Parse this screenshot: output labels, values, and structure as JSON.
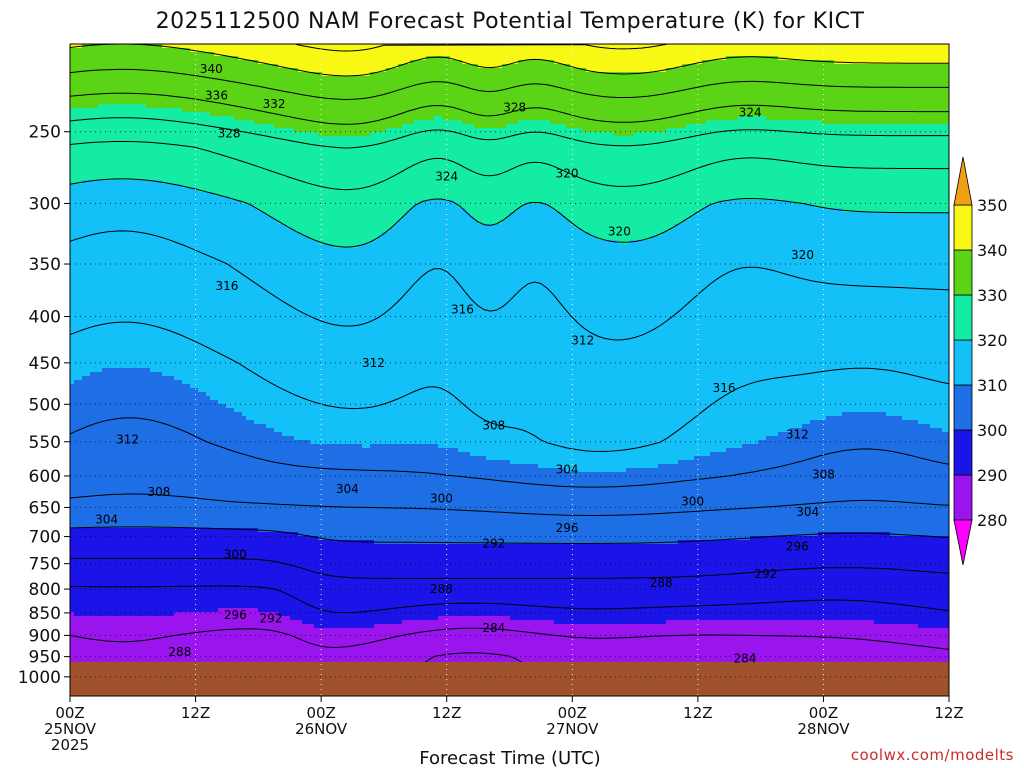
{
  "chart_data": {
    "type": "heatmap",
    "title": "2025112500 NAM Forecast Potential Temperature (K) for KICT",
    "xlabel": "Forecast Time (UTC)",
    "ylabel": "",
    "source_label": "coolwx.com/modelts",
    "x_range_hours": [
      0,
      84
    ],
    "x_ticks": [
      {
        "hour": 0,
        "lines": [
          "00Z",
          "25NOV",
          "2025"
        ]
      },
      {
        "hour": 12,
        "lines": [
          "12Z"
        ]
      },
      {
        "hour": 24,
        "lines": [
          "00Z",
          "26NOV"
        ]
      },
      {
        "hour": 36,
        "lines": [
          "12Z"
        ]
      },
      {
        "hour": 48,
        "lines": [
          "00Z",
          "27NOV"
        ]
      },
      {
        "hour": 60,
        "lines": [
          "12Z"
        ]
      },
      {
        "hour": 72,
        "lines": [
          "00Z",
          "28NOV"
        ]
      },
      {
        "hour": 84,
        "lines": [
          "12Z"
        ]
      }
    ],
    "y_axis": {
      "scale": "log-pressure",
      "units": "hPa",
      "top": 200,
      "bottom": 1050,
      "inverted": true,
      "ticks": [
        250,
        300,
        350,
        400,
        450,
        500,
        550,
        600,
        650,
        700,
        750,
        800,
        850,
        900,
        950,
        1000
      ]
    },
    "colorbar": {
      "levels": [
        280,
        290,
        300,
        310,
        320,
        330,
        340,
        350
      ],
      "labels": [
        "280",
        "290",
        "300",
        "310",
        "320",
        "330",
        "340",
        "350"
      ],
      "colors": [
        "#ff00ff",
        "#9a14ee",
        "#1a14e8",
        "#1e6ee6",
        "#14c0f8",
        "#14eca4",
        "#5ad414",
        "#f8f814",
        "#f0a014"
      ],
      "extend": "both"
    },
    "surface_pressure_hPa": 963,
    "ground_color": "#a0522d",
    "contour_interval_K": 4,
    "contour_labels": [
      {
        "t": 13.5,
        "p": 213,
        "v": 340
      },
      {
        "t": 14,
        "p": 228,
        "v": 336
      },
      {
        "t": 19.5,
        "p": 233,
        "v": 332
      },
      {
        "t": 15.2,
        "p": 251,
        "v": 328
      },
      {
        "t": 36,
        "p": 280,
        "v": 324
      },
      {
        "t": 42.5,
        "p": 235,
        "v": 328
      },
      {
        "t": 47.5,
        "p": 278,
        "v": 320
      },
      {
        "t": 52.5,
        "p": 322,
        "v": 320
      },
      {
        "t": 65,
        "p": 238,
        "v": 324
      },
      {
        "t": 70,
        "p": 342,
        "v": 320
      },
      {
        "t": 15,
        "p": 370,
        "v": 316
      },
      {
        "t": 37.5,
        "p": 393,
        "v": 316
      },
      {
        "t": 49,
        "p": 425,
        "v": 312
      },
      {
        "t": 29,
        "p": 450,
        "v": 312
      },
      {
        "t": 62.5,
        "p": 480,
        "v": 316
      },
      {
        "t": 69.5,
        "p": 540,
        "v": 312
      },
      {
        "t": 5.5,
        "p": 547,
        "v": 312
      },
      {
        "t": 40.5,
        "p": 528,
        "v": 308
      },
      {
        "t": 72,
        "p": 598,
        "v": 308
      },
      {
        "t": 8.5,
        "p": 625,
        "v": 308
      },
      {
        "t": 47.5,
        "p": 590,
        "v": 304
      },
      {
        "t": 26.5,
        "p": 620,
        "v": 304
      },
      {
        "t": 70.5,
        "p": 658,
        "v": 304
      },
      {
        "t": 3.5,
        "p": 670,
        "v": 304
      },
      {
        "t": 35.5,
        "p": 635,
        "v": 300
      },
      {
        "t": 59.5,
        "p": 640,
        "v": 300
      },
      {
        "t": 47.5,
        "p": 685,
        "v": 296
      },
      {
        "t": 40.5,
        "p": 712,
        "v": 292
      },
      {
        "t": 15.8,
        "p": 733,
        "v": 300
      },
      {
        "t": 69.5,
        "p": 718,
        "v": 296
      },
      {
        "t": 66.5,
        "p": 770,
        "v": 292
      },
      {
        "t": 56.5,
        "p": 788,
        "v": 288
      },
      {
        "t": 35.5,
        "p": 800,
        "v": 288
      },
      {
        "t": 15.8,
        "p": 855,
        "v": 296
      },
      {
        "t": 19.2,
        "p": 862,
        "v": 292
      },
      {
        "t": 40.5,
        "p": 883,
        "v": 284
      },
      {
        "t": 10.5,
        "p": 939,
        "v": 288
      },
      {
        "t": 64.5,
        "p": 955,
        "v": 284
      }
    ]
  }
}
